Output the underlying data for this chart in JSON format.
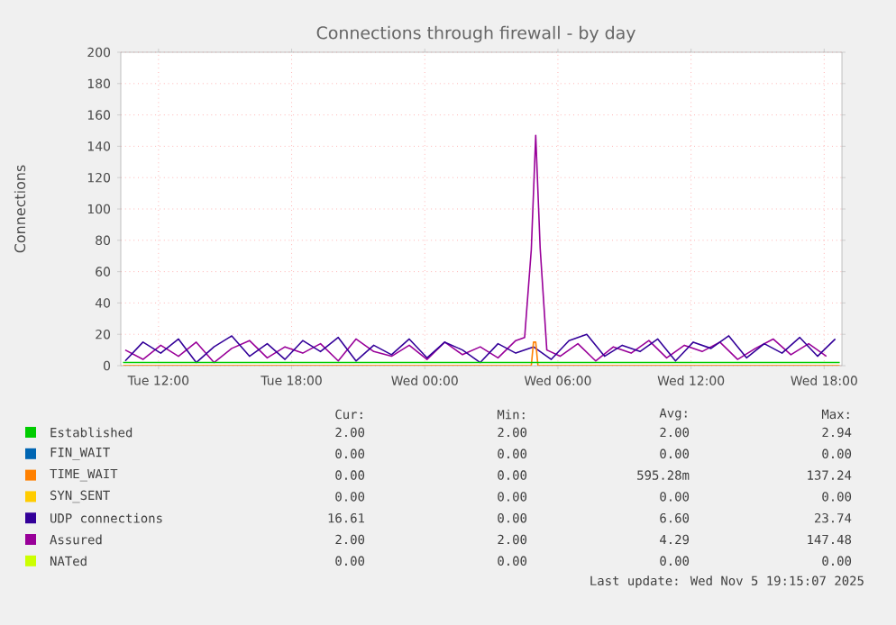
{
  "chart_data": {
    "type": "line",
    "title": "Connections through firewall - by day",
    "ylabel": "Connections",
    "xlim": [
      "2025-11-04T10:18",
      "2025-11-05T18:48"
    ],
    "ylim": [
      0,
      200
    ],
    "xticks": [
      {
        "value": "2025-11-04T12:00",
        "label": "Tue 12:00"
      },
      {
        "value": "2025-11-04T18:00",
        "label": "Tue 18:00"
      },
      {
        "value": "2025-11-05T00:00",
        "label": "Wed 00:00"
      },
      {
        "value": "2025-11-05T06:00",
        "label": "Wed 06:00"
      },
      {
        "value": "2025-11-05T12:00",
        "label": "Wed 12:00"
      },
      {
        "value": "2025-11-05T18:00",
        "label": "Wed 18:00"
      }
    ],
    "yticks": [
      0,
      20,
      40,
      60,
      80,
      100,
      120,
      140,
      160,
      180,
      200
    ],
    "grid": true,
    "legend": "bottom",
    "series": [
      {
        "name": "Established",
        "color": "#00cc00",
        "x": [
          "2025-11-04T10:24",
          "2025-11-05T18:42"
        ],
        "values": [
          2,
          2
        ]
      },
      {
        "name": "FIN_WAIT",
        "color": "#0066b3"
      },
      {
        "name": "TIME_WAIT",
        "color": "#ff8000",
        "x": [
          "2025-11-04T10:24",
          "2025-11-05T04:48",
          "2025-11-05T04:54",
          "2025-11-05T05:00",
          "2025-11-05T05:06",
          "2025-11-05T18:42"
        ],
        "values": [
          0,
          0,
          15,
          15,
          0,
          0
        ]
      },
      {
        "name": "SYN_SENT",
        "color": "#ffcc00"
      },
      {
        "name": "UDP connections",
        "color": "#330099",
        "x": [
          "2025-11-04T10:30",
          "2025-11-04T11:18",
          "2025-11-04T12:06",
          "2025-11-04T12:54",
          "2025-11-04T13:42",
          "2025-11-04T14:30",
          "2025-11-04T15:18",
          "2025-11-04T16:06",
          "2025-11-04T16:54",
          "2025-11-04T17:42",
          "2025-11-04T18:30",
          "2025-11-04T19:18",
          "2025-11-04T20:06",
          "2025-11-04T20:54",
          "2025-11-04T21:42",
          "2025-11-04T22:30",
          "2025-11-04T23:18",
          "2025-11-05T00:06",
          "2025-11-05T00:54",
          "2025-11-05T01:42",
          "2025-11-05T02:30",
          "2025-11-05T03:18",
          "2025-11-05T04:06",
          "2025-11-05T04:54",
          "2025-11-05T05:42",
          "2025-11-05T06:30",
          "2025-11-05T07:18",
          "2025-11-05T08:06",
          "2025-11-05T08:54",
          "2025-11-05T09:42",
          "2025-11-05T10:30",
          "2025-11-05T11:18",
          "2025-11-05T12:06",
          "2025-11-05T12:54",
          "2025-11-05T13:42",
          "2025-11-05T14:30",
          "2025-11-05T15:18",
          "2025-11-05T16:06",
          "2025-11-05T16:54",
          "2025-11-05T17:42",
          "2025-11-05T18:30"
        ],
        "values": [
          3,
          15,
          8,
          17,
          2,
          12,
          19,
          6,
          14,
          4,
          16,
          9,
          18,
          3,
          13,
          7,
          17,
          5,
          15,
          10,
          2,
          14,
          8,
          12,
          4,
          16,
          20,
          6,
          13,
          9,
          17,
          3,
          15,
          11,
          19,
          5,
          14,
          8,
          18,
          6,
          17
        ]
      },
      {
        "name": "Assured",
        "color": "#990099",
        "x": [
          "2025-11-04T10:30",
          "2025-11-04T11:18",
          "2025-11-04T12:06",
          "2025-11-04T12:54",
          "2025-11-04T13:42",
          "2025-11-04T14:30",
          "2025-11-04T15:18",
          "2025-11-04T16:06",
          "2025-11-04T16:54",
          "2025-11-04T17:42",
          "2025-11-04T18:30",
          "2025-11-04T19:18",
          "2025-11-04T20:06",
          "2025-11-04T20:54",
          "2025-11-04T21:42",
          "2025-11-04T22:30",
          "2025-11-04T23:18",
          "2025-11-05T00:06",
          "2025-11-05T00:54",
          "2025-11-05T01:42",
          "2025-11-05T02:30",
          "2025-11-05T03:18",
          "2025-11-05T04:06",
          "2025-11-05T04:30",
          "2025-11-05T04:48",
          "2025-11-05T05:00",
          "2025-11-05T05:12",
          "2025-11-05T05:30",
          "2025-11-05T06:06",
          "2025-11-05T06:54",
          "2025-11-05T07:42",
          "2025-11-05T08:30",
          "2025-11-05T09:18",
          "2025-11-05T10:06",
          "2025-11-05T10:54",
          "2025-11-05T11:42",
          "2025-11-05T12:30",
          "2025-11-05T13:18",
          "2025-11-05T14:06",
          "2025-11-05T14:54",
          "2025-11-05T15:42",
          "2025-11-05T16:30",
          "2025-11-05T17:18",
          "2025-11-05T18:06"
        ],
        "values": [
          10,
          4,
          13,
          6,
          15,
          2,
          11,
          16,
          5,
          12,
          8,
          14,
          3,
          17,
          9,
          6,
          13,
          4,
          15,
          7,
          12,
          5,
          16,
          18,
          74,
          147,
          75,
          10,
          6,
          14,
          3,
          12,
          8,
          16,
          5,
          13,
          9,
          15,
          4,
          11,
          17,
          7,
          14,
          6
        ]
      },
      {
        "name": "NATed",
        "color": "#ccff00"
      }
    ],
    "annotations": [
      "Cur:",
      "Min:",
      "Avg:",
      "Max:",
      "2.00",
      "2.00",
      "2.00",
      "2.94",
      "0.00",
      "0.00",
      "0.00",
      "0.00",
      "0.00",
      "0.00",
      "595.28m",
      "137.24",
      "0.00",
      "0.00",
      "0.00",
      "0.00",
      "16.61",
      "0.00",
      "6.60",
      "23.74",
      "2.00",
      "2.00",
      "4.29",
      "147.48",
      "0.00",
      "0.00",
      "0.00",
      "0.00",
      "Last update: Wed Nov  5 19:15:07 2025"
    ]
  }
}
